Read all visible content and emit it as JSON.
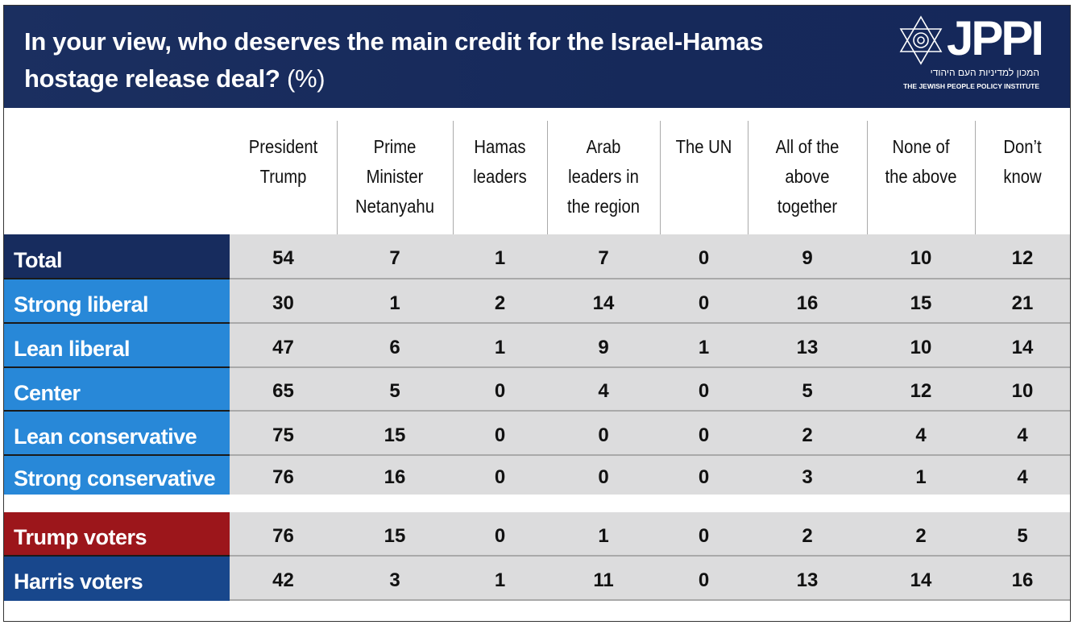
{
  "header": {
    "title": "In your view, who deserves the main credit for the Israel-Hamas hostage release deal?",
    "unit": "(%)",
    "logo_text": "JPPI",
    "logo_hebrew": "המכון למדיניות העם היהודי",
    "logo_english": "THE JEWISH PEOPLE POLICY INSTITUTE"
  },
  "colors": {
    "header_bg": "#172c5e",
    "total": "#172c5e",
    "ideology": "#2888d8",
    "trump": "#9c161b",
    "harris": "#18478c",
    "cell_bg": "#dcdcdd"
  },
  "chart_data": {
    "type": "table",
    "title": "In your view, who deserves the main credit for the Israel-Hamas hostage release deal? (%)",
    "columns": [
      "President Trump",
      "Prime Minister Netanyahu",
      "Hamas leaders",
      "Arab leaders in the region",
      "The UN",
      "All of the above together",
      "None of the above",
      "Don’t know"
    ],
    "rows": [
      {
        "label": "Total",
        "group": "total",
        "values": [
          54,
          7,
          1,
          7,
          0,
          9,
          10,
          12
        ]
      },
      {
        "label": "Strong liberal",
        "group": "ideology",
        "values": [
          30,
          1,
          2,
          14,
          0,
          16,
          15,
          21
        ]
      },
      {
        "label": "Lean liberal",
        "group": "ideology",
        "values": [
          47,
          6,
          1,
          9,
          1,
          13,
          10,
          14
        ]
      },
      {
        "label": "Center",
        "group": "ideology",
        "values": [
          65,
          5,
          0,
          4,
          0,
          5,
          12,
          10
        ]
      },
      {
        "label": "Lean conservative",
        "group": "ideology",
        "values": [
          75,
          15,
          0,
          0,
          0,
          2,
          4,
          4
        ]
      },
      {
        "label": "Strong conservative",
        "group": "ideology",
        "values": [
          76,
          16,
          0,
          0,
          0,
          3,
          1,
          4
        ]
      },
      {
        "label": "Trump voters",
        "group": "trump",
        "values": [
          76,
          15,
          0,
          1,
          0,
          2,
          2,
          5
        ]
      },
      {
        "label": "Harris voters",
        "group": "harris",
        "values": [
          42,
          3,
          1,
          11,
          0,
          13,
          14,
          16
        ]
      }
    ]
  }
}
